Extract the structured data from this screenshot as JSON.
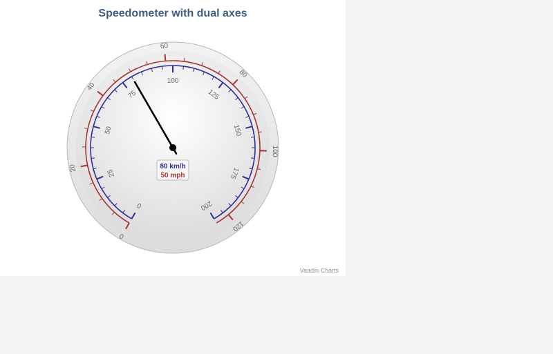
{
  "chart_data": {
    "type": "gauge",
    "title": "Speedometer with dual axes",
    "credits": "Vaadin Charts",
    "value": 80,
    "axes": [
      {
        "name": "km/h",
        "min": 0,
        "max": 200,
        "major_tick_interval": 25,
        "minor_tick_interval": 5,
        "tick_labels": [
          "0",
          "25",
          "50",
          "75",
          "100",
          "125",
          "150",
          "175",
          "200"
        ],
        "color": "#2d2d9a",
        "position": "inner"
      },
      {
        "name": "mph",
        "min": 0,
        "max": 124,
        "major_tick_interval": 20,
        "minor_tick_interval": 5,
        "tick_labels": [
          "0",
          "20",
          "40",
          "60",
          "80",
          "100",
          "120"
        ],
        "color": "#a83232",
        "position": "outer"
      }
    ],
    "readout": {
      "primary": "80 km/h",
      "secondary": "50 mph"
    },
    "start_angle_deg": -150,
    "end_angle_deg": 150
  },
  "colors": {
    "title": "#3d5f87",
    "kmh": "#2d2d9a",
    "mph": "#a83232",
    "needle": "#000000",
    "credits": "#909090"
  }
}
